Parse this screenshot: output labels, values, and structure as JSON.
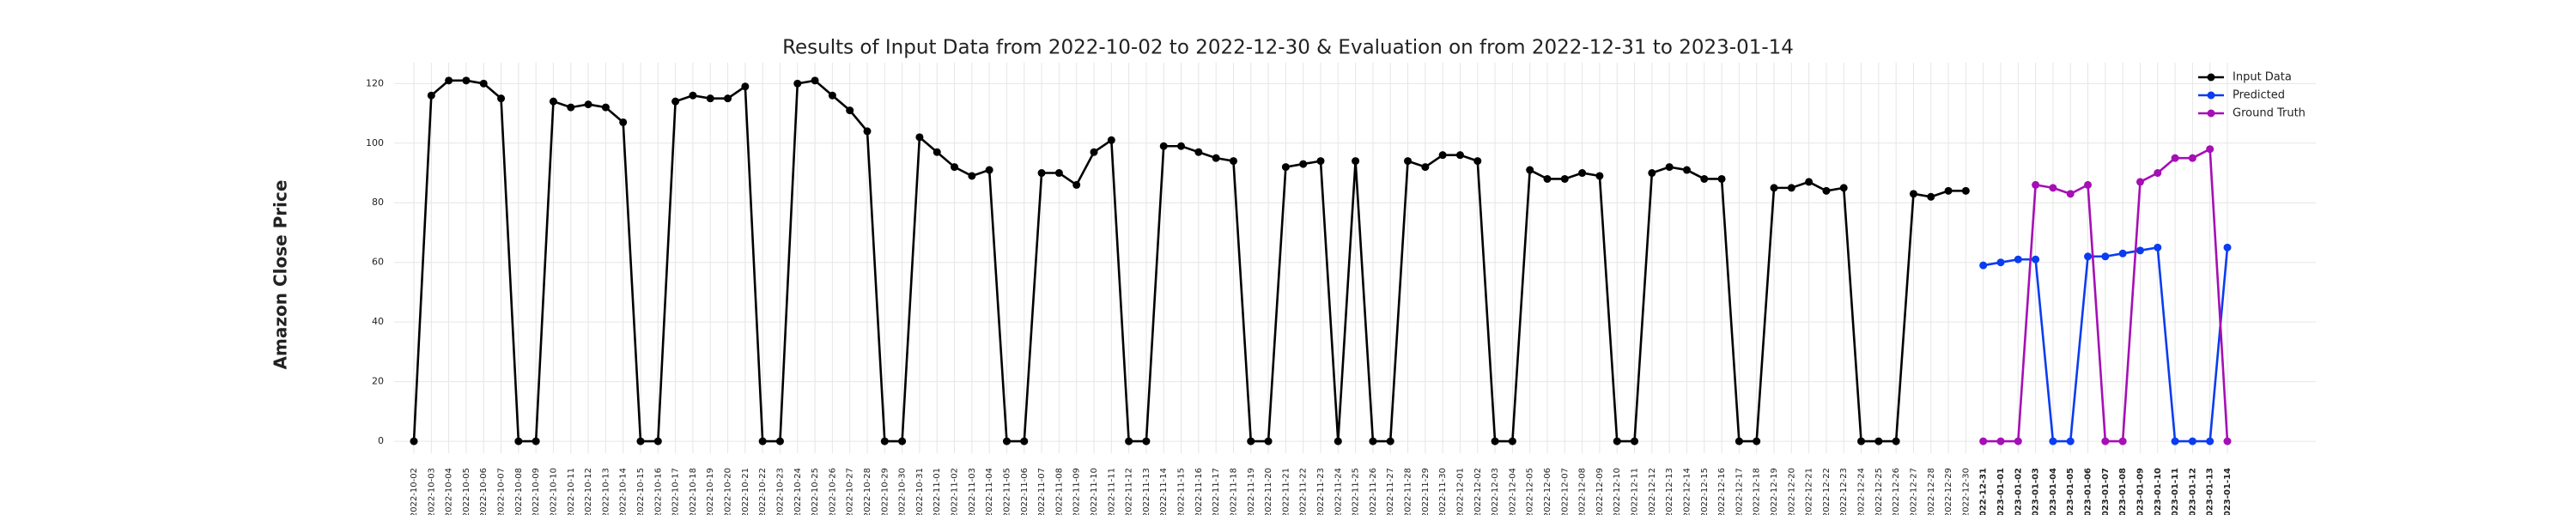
{
  "chart_data": {
    "type": "line",
    "title": "Results of Input Data from 2022-10-02 to 2022-12-30 & Evaluation on from 2022-12-31 to 2023-01-14",
    "ylabel": "Amazon Close Price",
    "categories": [
      "2022-10-02",
      "2022-10-03",
      "2022-10-04",
      "2022-10-05",
      "2022-10-06",
      "2022-10-07",
      "2022-10-08",
      "2022-10-09",
      "2022-10-10",
      "2022-10-11",
      "2022-10-12",
      "2022-10-13",
      "2022-10-14",
      "2022-10-15",
      "2022-10-16",
      "2022-10-17",
      "2022-10-18",
      "2022-10-19",
      "2022-10-20",
      "2022-10-21",
      "2022-10-22",
      "2022-10-23",
      "2022-10-24",
      "2022-10-25",
      "2022-10-26",
      "2022-10-27",
      "2022-10-28",
      "2022-10-29",
      "2022-10-30",
      "2022-10-31",
      "2022-11-01",
      "2022-11-02",
      "2022-11-03",
      "2022-11-04",
      "2022-11-05",
      "2022-11-06",
      "2022-11-07",
      "2022-11-08",
      "2022-11-09",
      "2022-11-10",
      "2022-11-11",
      "2022-11-12",
      "2022-11-13",
      "2022-11-14",
      "2022-11-15",
      "2022-11-16",
      "2022-11-17",
      "2022-11-18",
      "2022-11-19",
      "2022-11-20",
      "2022-11-21",
      "2022-11-22",
      "2022-11-23",
      "2022-11-24",
      "2022-11-25",
      "2022-11-26",
      "2022-11-27",
      "2022-11-28",
      "2022-11-29",
      "2022-11-30",
      "2022-12-01",
      "2022-12-02",
      "2022-12-03",
      "2022-12-04",
      "2022-12-05",
      "2022-12-06",
      "2022-12-07",
      "2022-12-08",
      "2022-12-09",
      "2022-12-10",
      "2022-12-11",
      "2022-12-12",
      "2022-12-13",
      "2022-12-14",
      "2022-12-15",
      "2022-12-16",
      "2022-12-17",
      "2022-12-18",
      "2022-12-19",
      "2022-12-20",
      "2022-12-21",
      "2022-12-22",
      "2022-12-23",
      "2022-12-24",
      "2022-12-25",
      "2022-12-26",
      "2022-12-27",
      "2022-12-28",
      "2022-12-29",
      "2022-12-30",
      "2022-12-31",
      "2023-01-01",
      "2023-01-02",
      "2023-01-03",
      "2023-01-04",
      "2023-01-05",
      "2023-01-06",
      "2023-01-07",
      "2023-01-08",
      "2023-01-09",
      "2023-01-10",
      "2023-01-11",
      "2023-01-12",
      "2023-01-13",
      "2023-01-14"
    ],
    "series": [
      {
        "name": "Input Data",
        "color": "#000000",
        "values": [
          0,
          116,
          121,
          121,
          120,
          115,
          0,
          0,
          114,
          112,
          113,
          112,
          107,
          0,
          0,
          114,
          116,
          115,
          115,
          119,
          0,
          0,
          120,
          121,
          116,
          111,
          104,
          0,
          0,
          102,
          97,
          92,
          89,
          91,
          0,
          0,
          90,
          90,
          86,
          97,
          101,
          0,
          0,
          99,
          99,
          97,
          95,
          94,
          0,
          0,
          92,
          93,
          94,
          0,
          94,
          0,
          0,
          94,
          92,
          96,
          96,
          94,
          0,
          0,
          91,
          88,
          88,
          90,
          89,
          0,
          0,
          90,
          92,
          91,
          88,
          88,
          0,
          0,
          85,
          85,
          87,
          84,
          85,
          0,
          0,
          0,
          83,
          82,
          84,
          84,
          null,
          null,
          null,
          null,
          null,
          null,
          null,
          null,
          null,
          null,
          null,
          null,
          null,
          null,
          null
        ]
      },
      {
        "name": "Predicted",
        "color": "#0a3cf0",
        "values": [
          null,
          null,
          null,
          null,
          null,
          null,
          null,
          null,
          null,
          null,
          null,
          null,
          null,
          null,
          null,
          null,
          null,
          null,
          null,
          null,
          null,
          null,
          null,
          null,
          null,
          null,
          null,
          null,
          null,
          null,
          null,
          null,
          null,
          null,
          null,
          null,
          null,
          null,
          null,
          null,
          null,
          null,
          null,
          null,
          null,
          null,
          null,
          null,
          null,
          null,
          null,
          null,
          null,
          null,
          null,
          null,
          null,
          null,
          null,
          null,
          null,
          null,
          null,
          null,
          null,
          null,
          null,
          null,
          null,
          null,
          null,
          null,
          null,
          null,
          null,
          null,
          null,
          null,
          null,
          null,
          null,
          null,
          null,
          null,
          null,
          null,
          null,
          null,
          null,
          null,
          59,
          60,
          61,
          61,
          0,
          0,
          62,
          62,
          63,
          64,
          65,
          0,
          0,
          0,
          65
        ]
      },
      {
        "name": "Ground Truth",
        "color": "#a50fb5",
        "values": [
          null,
          null,
          null,
          null,
          null,
          null,
          null,
          null,
          null,
          null,
          null,
          null,
          null,
          null,
          null,
          null,
          null,
          null,
          null,
          null,
          null,
          null,
          null,
          null,
          null,
          null,
          null,
          null,
          null,
          null,
          null,
          null,
          null,
          null,
          null,
          null,
          null,
          null,
          null,
          null,
          null,
          null,
          null,
          null,
          null,
          null,
          null,
          null,
          null,
          null,
          null,
          null,
          null,
          null,
          null,
          null,
          null,
          null,
          null,
          null,
          null,
          null,
          null,
          null,
          null,
          null,
          null,
          null,
          null,
          null,
          null,
          null,
          null,
          null,
          null,
          null,
          null,
          null,
          null,
          null,
          null,
          null,
          null,
          null,
          null,
          null,
          null,
          null,
          null,
          null,
          0,
          0,
          0,
          86,
          85,
          83,
          86,
          0,
          0,
          87,
          90,
          95,
          95,
          98,
          0
        ]
      }
    ],
    "ylim": [
      -4,
      127
    ],
    "yticks": [
      0,
      20,
      40,
      60,
      80,
      100,
      120
    ],
    "grid": true,
    "legend": "upper right"
  }
}
